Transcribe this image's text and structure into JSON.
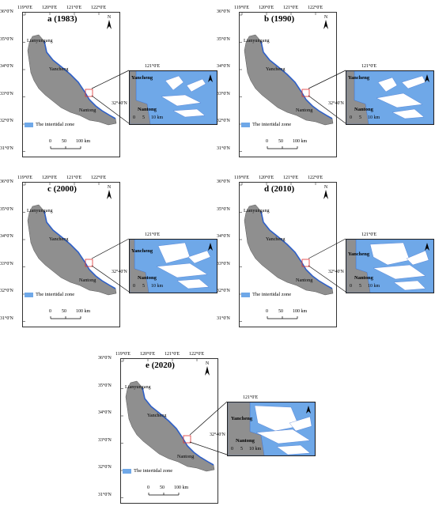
{
  "colors": {
    "land": "#8f8f8f",
    "water": "#6fa8e8",
    "coast": "#2e5fc7",
    "box": "#e03030",
    "frame": "#222222"
  },
  "common": {
    "lon_ticks": [
      "119°0'E",
      "120°0'E",
      "121°0'E",
      "122°0'E"
    ],
    "lat_ticks": [
      "36°0'N",
      "35°0'N",
      "34°0'N",
      "33°0'N",
      "32°0'N",
      "31°0'N"
    ],
    "city_lianyungang": "Lianyungang",
    "city_yancheng": "Yancheng",
    "city_nantong": "Nantong",
    "legend": "The intertidal zone",
    "scale_0": "0",
    "scale_50": "50",
    "scale_100": "100 km",
    "north": "N",
    "inset_lon": "121°0'E",
    "inset_lat": "32°40'N",
    "inset_yancheng": "Yancheng",
    "inset_nantong": "Nantong",
    "inset_scale_0": "0",
    "inset_scale_5": "5",
    "inset_scale_10": "10 km"
  },
  "panels": [
    {
      "title": "a (1983)",
      "year": 1983
    },
    {
      "title": "b (1990)",
      "year": 1990
    },
    {
      "title": "c (2000)",
      "year": 2000
    },
    {
      "title": "d (2010)",
      "year": 2010
    },
    {
      "title": "e (2020)",
      "year": 2020
    }
  ]
}
